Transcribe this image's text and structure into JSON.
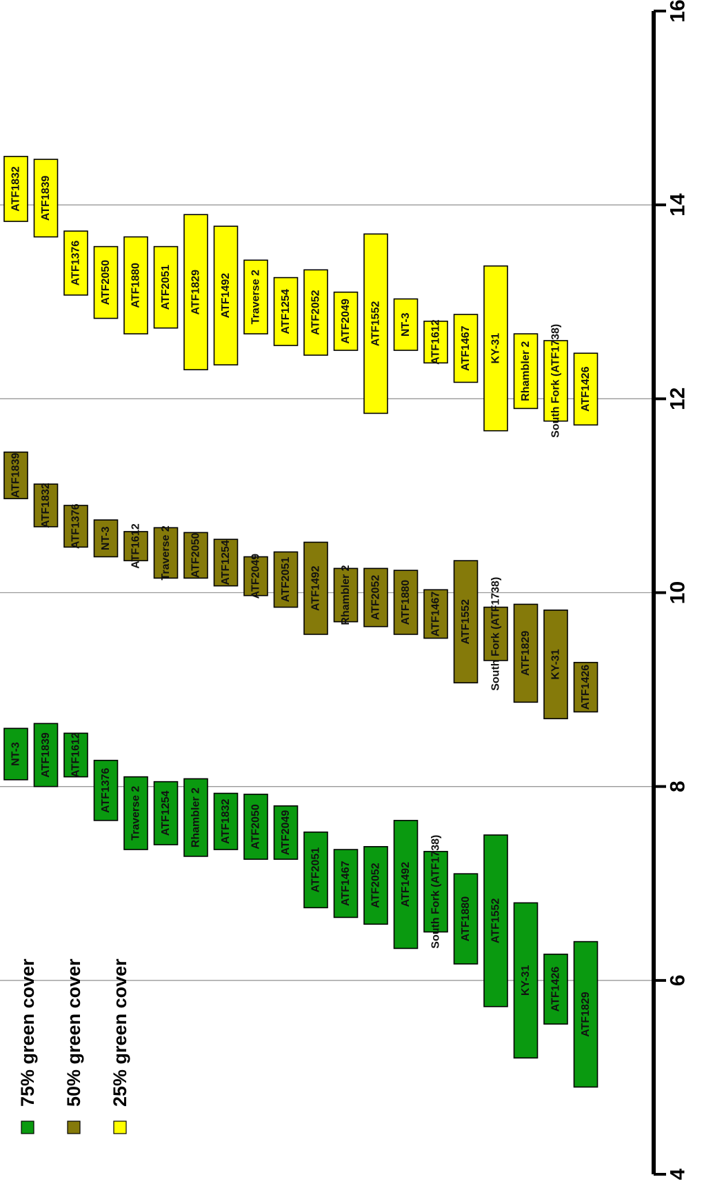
{
  "chart_data": {
    "type": "bar",
    "orientation": "floating bars, y axis on the right",
    "ylim": [
      4,
      16
    ],
    "yticks": [
      "4",
      "6",
      "8",
      "10",
      "12",
      "14",
      "16"
    ],
    "grid": true,
    "legend_position": "bottom-left",
    "series": [
      {
        "name": "75% green cover",
        "color": "#0a9a10",
        "bars": [
          {
            "label": "NT-3",
            "low": 8.07,
            "high": 8.6
          },
          {
            "label": "ATF1839",
            "low": 8.0,
            "high": 8.65
          },
          {
            "label": "ATF1612",
            "low": 8.1,
            "high": 8.55
          },
          {
            "label": "ATF1376",
            "low": 7.65,
            "high": 8.27
          },
          {
            "label": "Traverse 2",
            "low": 7.35,
            "high": 8.1
          },
          {
            "label": "ATF1254",
            "low": 7.4,
            "high": 8.05
          },
          {
            "label": "Rhambler 2",
            "low": 7.28,
            "high": 8.08
          },
          {
            "label": "ATF1832",
            "low": 7.35,
            "high": 7.93
          },
          {
            "label": "ATF2050",
            "low": 7.25,
            "high": 7.92
          },
          {
            "label": "ATF2049",
            "low": 7.25,
            "high": 7.8
          },
          {
            "label": "ATF2051",
            "low": 6.75,
            "high": 7.53
          },
          {
            "label": "ATF1467",
            "low": 6.65,
            "high": 7.35
          },
          {
            "label": "ATF2052",
            "low": 6.58,
            "high": 7.38
          },
          {
            "label": "ATF1492",
            "low": 6.33,
            "high": 7.65
          },
          {
            "label": "South Fork (ATF1738)",
            "low": 6.5,
            "high": 7.33
          },
          {
            "label": "ATF1880",
            "low": 6.17,
            "high": 7.1
          },
          {
            "label": "ATF1552",
            "low": 5.73,
            "high": 7.5
          },
          {
            "label": "KY-31",
            "low": 5.2,
            "high": 6.8
          },
          {
            "label": "ATF1426",
            "low": 5.55,
            "high": 6.27
          },
          {
            "label": "ATF1829",
            "low": 4.9,
            "high": 6.4
          }
        ]
      },
      {
        "name": "50% green cover",
        "color": "#857a0a",
        "bars": [
          {
            "label": "ATF1839",
            "low": 10.97,
            "high": 11.45
          },
          {
            "label": "ATF1832",
            "low": 10.68,
            "high": 11.12
          },
          {
            "label": "ATF1376",
            "low": 10.47,
            "high": 10.9
          },
          {
            "label": "NT-3",
            "low": 10.37,
            "high": 10.75
          },
          {
            "label": "ATF1612",
            "low": 10.33,
            "high": 10.63
          },
          {
            "label": "Traverse 2",
            "low": 10.15,
            "high": 10.67
          },
          {
            "label": "ATF2050",
            "low": 10.15,
            "high": 10.62
          },
          {
            "label": "ATF1254",
            "low": 10.07,
            "high": 10.55
          },
          {
            "label": "ATF2049",
            "low": 9.97,
            "high": 10.37
          },
          {
            "label": "ATF2051",
            "low": 9.85,
            "high": 10.42
          },
          {
            "label": "ATF1492",
            "low": 9.57,
            "high": 10.52
          },
          {
            "label": "Rhambler 2",
            "low": 9.7,
            "high": 10.25
          },
          {
            "label": "ATF2052",
            "low": 9.65,
            "high": 10.25
          },
          {
            "label": "ATF1880",
            "low": 9.57,
            "high": 10.23
          },
          {
            "label": "ATF1467",
            "low": 9.53,
            "high": 10.03
          },
          {
            "label": "ATF1552",
            "low": 9.07,
            "high": 10.33
          },
          {
            "label": "South Fork (ATF1738)",
            "low": 9.3,
            "high": 9.85
          },
          {
            "label": "ATF1829",
            "low": 8.87,
            "high": 9.88
          },
          {
            "label": "KY-31",
            "low": 8.7,
            "high": 9.82
          },
          {
            "label": "ATF1426",
            "low": 8.77,
            "high": 9.28
          }
        ]
      },
      {
        "name": "25% green cover",
        "color": "#ffff00",
        "bars": [
          {
            "label": "ATF1832",
            "low": 13.83,
            "high": 14.5
          },
          {
            "label": "ATF1839",
            "low": 13.67,
            "high": 14.47
          },
          {
            "label": "ATF1376",
            "low": 13.07,
            "high": 13.73
          },
          {
            "label": "ATF2050",
            "low": 12.83,
            "high": 13.57
          },
          {
            "label": "ATF1880",
            "low": 12.67,
            "high": 13.67
          },
          {
            "label": "ATF2051",
            "low": 12.73,
            "high": 13.57
          },
          {
            "label": "ATF1829",
            "low": 12.3,
            "high": 13.9
          },
          {
            "label": "ATF1492",
            "low": 12.35,
            "high": 13.78
          },
          {
            "label": "Traverse 2",
            "low": 12.67,
            "high": 13.43
          },
          {
            "label": "ATF1254",
            "low": 12.55,
            "high": 13.25
          },
          {
            "label": "ATF2052",
            "low": 12.45,
            "high": 13.33
          },
          {
            "label": "ATF2049",
            "low": 12.5,
            "high": 13.1
          },
          {
            "label": "ATF1552",
            "low": 11.85,
            "high": 13.7
          },
          {
            "label": "NT-3",
            "low": 12.5,
            "high": 13.03
          },
          {
            "label": "ATF1612",
            "low": 12.37,
            "high": 12.8
          },
          {
            "label": "ATF1467",
            "low": 12.17,
            "high": 12.87
          },
          {
            "label": "KY-31",
            "low": 11.67,
            "high": 13.37
          },
          {
            "label": "Rhambler 2",
            "low": 11.9,
            "high": 12.67
          },
          {
            "label": "South Fork (ATF1738)",
            "low": 11.77,
            "high": 12.6
          },
          {
            "label": "ATF1426",
            "low": 11.73,
            "high": 12.47
          }
        ]
      }
    ]
  }
}
